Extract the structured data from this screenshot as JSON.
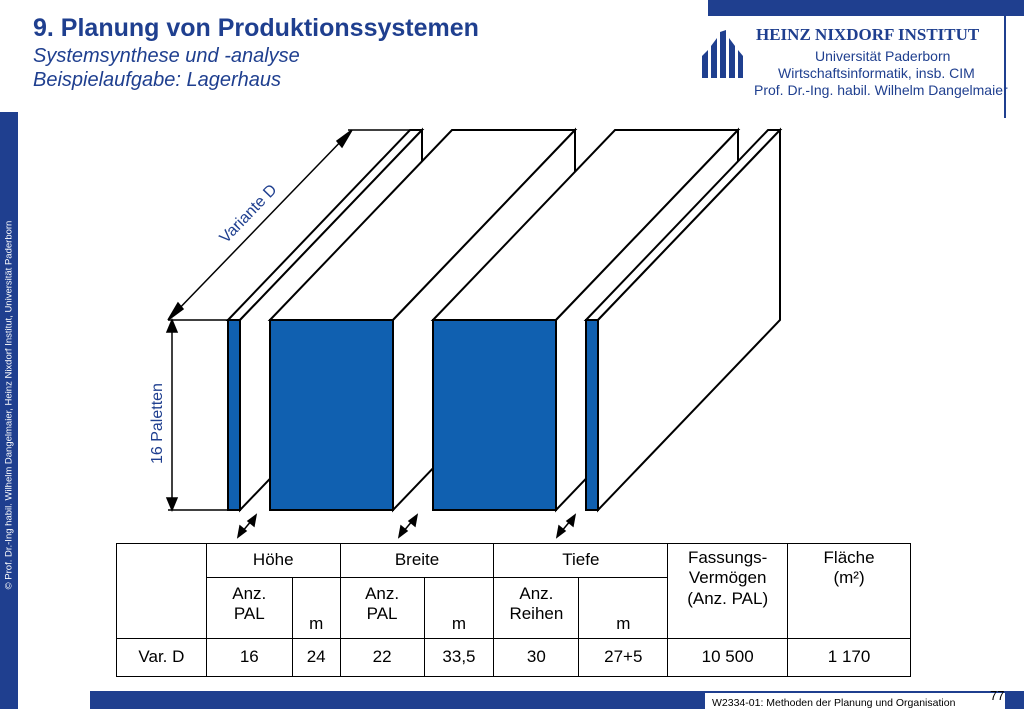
{
  "header": {
    "title": "9. Planung von Produktionssystemen",
    "subtitle_line1": "Systemsynthese und -analyse",
    "subtitle_line2": "Beispielaufgabe: Lagerhaus"
  },
  "institute": {
    "name": "HEINZ NIXDORF INSTITUT",
    "line1": "Universität Paderborn",
    "line2": "Wirtschaftsinformatik, insb. CIM",
    "line3": "Prof. Dr.-Ing. habil. Wilhelm Dangelmaier"
  },
  "sidebar": {
    "copyright": "© Prof. Dr.-Ing habil. Wilhelm Dangelmaier, Heinz Nixdorf Institut, Universität Paderborn"
  },
  "drawing": {
    "variant_label": "Variante D",
    "height_label": "16 Paletten"
  },
  "table": {
    "headers": {
      "hoehe": "Höhe",
      "breite": "Breite",
      "tiefe": "Tiefe",
      "fassung_1": "Fassungs-",
      "fassung_2": "Vermögen",
      "fassung_3": "(Anz. PAL)",
      "flaeche_1": "Fläche",
      "flaeche_2": "(m²)"
    },
    "subheaders": {
      "hoehe_anz_1": "Anz.",
      "hoehe_anz_2": "PAL",
      "hoehe_m": "m",
      "breite_anz_1": "Anz.",
      "breite_anz_2": "PAL",
      "breite_m": "m",
      "tiefe_anz_1": "Anz.",
      "tiefe_anz_2": "Reihen",
      "tiefe_m": "m"
    },
    "row": {
      "label": "Var. D",
      "hoehe_pal": "16",
      "hoehe_m": "24",
      "breite_pal": "22",
      "breite_m": "33,5",
      "tiefe_reihen": "30",
      "tiefe_m": "27+5",
      "fassung": "10 500",
      "flaeche": "1 170"
    }
  },
  "footer": {
    "course": "W2334-01: Methoden der Planung und Organisation",
    "page": "77"
  },
  "colors": {
    "brand_blue": "#1f3f8f",
    "rack_blue": "#1060b0"
  }
}
